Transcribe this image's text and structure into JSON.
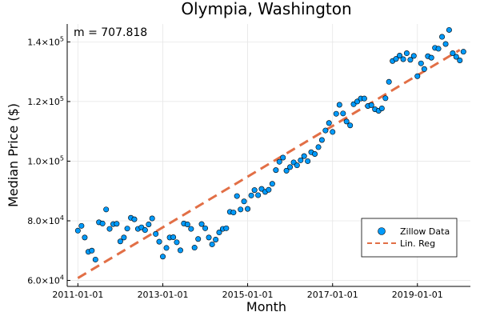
{
  "chart_data": {
    "type": "scatter",
    "title": "Olympia, Washington",
    "xlabel": "Month",
    "ylabel": "Median Price ($)",
    "annotation": "m = 707.818",
    "xlim": [
      "2010-10-01",
      "2020-04-01"
    ],
    "ylim": [
      58000,
      146000
    ],
    "x_ticks": [
      "2011-01-01",
      "2013-01-01",
      "2015-01-01",
      "2017-01-01",
      "2019-01-01"
    ],
    "y_ticks": [
      {
        "value": 60000,
        "mantissa": "6.0",
        "base": "×10",
        "exp": "4"
      },
      {
        "value": 80000,
        "mantissa": "8.0",
        "base": "×10",
        "exp": "4"
      },
      {
        "value": 100000,
        "mantissa": "1.0",
        "base": "×10",
        "exp": "5"
      },
      {
        "value": 120000,
        "mantissa": "1.2",
        "base": "×10",
        "exp": "5"
      },
      {
        "value": 140000,
        "mantissa": "1.4",
        "base": "×10",
        "exp": "5"
      }
    ],
    "grid": true,
    "legend_position": "bottom-right",
    "series": [
      {
        "name": "Zillow Data",
        "kind": "scatter",
        "color": "#009AFA",
        "start_month": "2011-01",
        "values": [
          76700,
          78300,
          74400,
          69600,
          70000,
          67000,
          79500,
          79100,
          83800,
          77300,
          78900,
          79000,
          73100,
          74400,
          77400,
          81000,
          80500,
          77300,
          77800,
          76900,
          78800,
          80800,
          75600,
          73000,
          68000,
          70900,
          74400,
          74500,
          72800,
          70100,
          79100,
          78800,
          77300,
          71000,
          73900,
          78900,
          77500,
          74400,
          72100,
          73700,
          76100,
          77300,
          77500,
          83000,
          82800,
          88300,
          83800,
          86500,
          84000,
          88500,
          90300,
          88600,
          90700,
          89700,
          90400,
          92400,
          97000,
          99800,
          101200,
          96800,
          98000,
          99600,
          98600,
          100300,
          101700,
          100000,
          103000,
          102400,
          104700,
          107100,
          110300,
          112800,
          109800,
          115900,
          118900,
          116000,
          113300,
          112000,
          119100,
          120000,
          121000,
          121000,
          118500,
          118800,
          117400,
          116900,
          117700,
          121100,
          126600,
          133600,
          134300,
          135400,
          134200,
          136200,
          134000,
          135300,
          128500,
          132800,
          130900,
          135200,
          134700,
          138000,
          137700,
          141700,
          139300,
          144000,
          136200,
          135000,
          133800,
          136700
        ]
      },
      {
        "name": "Lin. Reg",
        "kind": "line",
        "color": "#E26F46",
        "x": [
          "2011-01-01",
          "2020-01-01"
        ],
        "y": [
          60800,
          137300
        ]
      }
    ]
  }
}
